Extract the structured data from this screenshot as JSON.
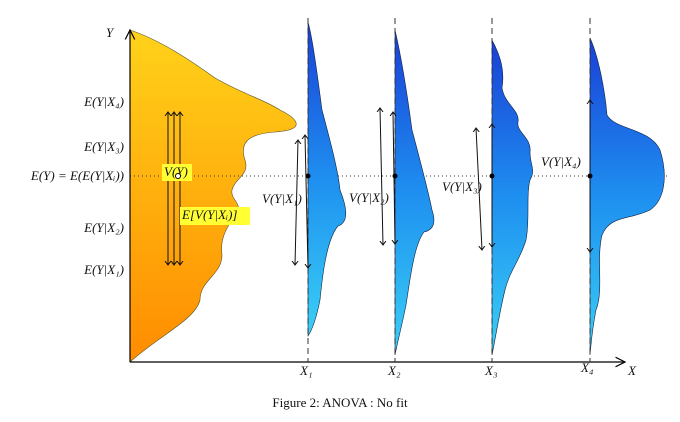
{
  "axes": {
    "y": "Y",
    "x": "X"
  },
  "y_labels": [
    "E(Y|X₄)",
    "E(Y|X₃)",
    "E(Y) = E(E(Y|Xᵢ))",
    "E(Y|X₂)",
    "E(Y|X₁)"
  ],
  "marginal": {
    "variance": "V(Y)",
    "mean_variance": "E[V(Y|Xᵢ)]"
  },
  "groups": [
    {
      "x_label": "X₁",
      "variance": "V(Y|X₁)"
    },
    {
      "x_label": "X₂",
      "variance": "V(Y|X₂)"
    },
    {
      "x_label": "X₃",
      "variance": "V(Y|X₃)"
    },
    {
      "x_label": "X₄",
      "variance": "V(Y|X₄)"
    }
  ],
  "caption": "Figure 2:  ANOVA : No fit"
}
